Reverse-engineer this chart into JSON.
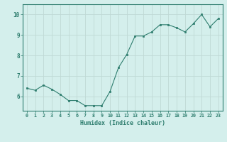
{
  "x": [
    0,
    1,
    2,
    3,
    4,
    5,
    6,
    7,
    8,
    9,
    10,
    11,
    12,
    13,
    14,
    15,
    16,
    17,
    18,
    19,
    20,
    21,
    22,
    23
  ],
  "y": [
    6.4,
    6.3,
    6.55,
    6.35,
    6.1,
    5.8,
    5.8,
    5.55,
    5.55,
    5.55,
    6.25,
    7.4,
    8.05,
    8.95,
    8.95,
    9.15,
    9.5,
    9.5,
    9.35,
    9.15,
    9.55,
    10.0,
    9.4,
    9.8
  ],
  "xlabel": "Humidex (Indice chaleur)",
  "ylim": [
    5.3,
    10.5
  ],
  "xlim": [
    -0.5,
    23.5
  ],
  "yticks": [
    6,
    7,
    8,
    9,
    10
  ],
  "xticks": [
    0,
    1,
    2,
    3,
    4,
    5,
    6,
    7,
    8,
    9,
    10,
    11,
    12,
    13,
    14,
    15,
    16,
    17,
    18,
    19,
    20,
    21,
    22,
    23
  ],
  "line_color": "#2e7d6e",
  "marker_color": "#2e7d6e",
  "bg_color": "#d4efec",
  "grid_color": "#bfd9d5",
  "axis_color": "#2e7d6e",
  "font_color": "#2e7d6e"
}
